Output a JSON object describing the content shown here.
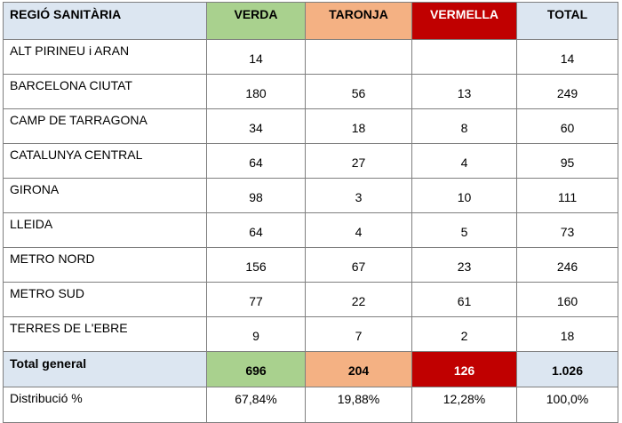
{
  "headers": {
    "region": "REGIÓ SANITÀRIA",
    "verda": "VERDA",
    "taronja": "TARONJA",
    "vermella": "VERMELLA",
    "total": "TOTAL"
  },
  "rows": [
    {
      "region": "ALT PIRINEU i ARAN",
      "verda": "14",
      "taronja": "",
      "vermella": "",
      "total": "14"
    },
    {
      "region": "BARCELONA CIUTAT",
      "verda": "180",
      "taronja": "56",
      "vermella": "13",
      "total": "249"
    },
    {
      "region": "CAMP DE TARRAGONA",
      "verda": "34",
      "taronja": "18",
      "vermella": "8",
      "total": "60"
    },
    {
      "region": "CATALUNYA CENTRAL",
      "verda": "64",
      "taronja": "27",
      "vermella": "4",
      "total": "95"
    },
    {
      "region": "GIRONA",
      "verda": "98",
      "taronja": "3",
      "vermella": "10",
      "total": "111"
    },
    {
      "region": "LLEIDA",
      "verda": "64",
      "taronja": "4",
      "vermella": "5",
      "total": "73"
    },
    {
      "region": "METRO NORD",
      "verda": "156",
      "taronja": "67",
      "vermella": "23",
      "total": "246"
    },
    {
      "region": "METRO SUD",
      "verda": "77",
      "taronja": "22",
      "vermella": "61",
      "total": "160"
    },
    {
      "region": "TERRES DE L'EBRE",
      "verda": "9",
      "taronja": "7",
      "vermella": "2",
      "total": "18"
    }
  ],
  "total_general": {
    "label": "Total general",
    "verda": "696",
    "taronja": "204",
    "vermella": "126",
    "total": "1.026"
  },
  "distribucio": {
    "label": "Distribució %",
    "verda": "67,84%",
    "taronja": "19,88%",
    "vermella": "12,28%",
    "total": "100,0%"
  },
  "colors": {
    "verda": "#a9d18e",
    "taronja": "#f4b183",
    "vermella": "#c00000",
    "header_blue": "#dce6f1"
  }
}
